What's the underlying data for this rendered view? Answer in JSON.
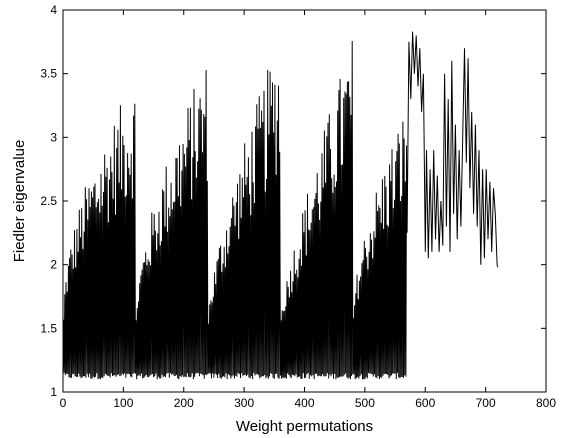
{
  "chart_data": {
    "type": "line",
    "title": "",
    "xlabel": "Weight permutations",
    "ylabel": "Fiedler eigenvalue",
    "xlim": [
      0,
      800
    ],
    "ylim": [
      1,
      4
    ],
    "xticks": [
      0,
      100,
      200,
      300,
      400,
      500,
      600,
      700,
      800
    ],
    "yticks": [
      1,
      1.5,
      2,
      2.5,
      3,
      3.5,
      4
    ],
    "xtick_labels": [
      "0",
      "100",
      "200",
      "300",
      "400",
      "500",
      "600",
      "700",
      "800"
    ],
    "ytick_labels": [
      "1",
      "1.5",
      "2",
      "2.5",
      "3",
      "3.5",
      "4"
    ],
    "grid": false,
    "line_color": "#000000",
    "series": [
      {
        "segments": [
          {
            "x0": 0,
            "x1": 120,
            "base": 1.1,
            "peak": 3.47,
            "ramp": 0.5
          },
          {
            "x0": 120,
            "x1": 240,
            "base": 1.1,
            "peak": 3.66,
            "ramp": 0.6
          },
          {
            "x0": 240,
            "x1": 360,
            "base": 1.1,
            "peak": 3.83,
            "ramp": 0.7
          },
          {
            "x0": 360,
            "x1": 480,
            "base": 1.1,
            "peak": 3.83,
            "ramp": 0.8
          },
          {
            "x0": 480,
            "x1": 570,
            "base": 1.1,
            "peak": 3.3,
            "ramp": 0.6
          }
        ],
        "tail": [
          [
            570,
            2.25
          ],
          [
            573,
            3.75
          ],
          [
            576,
            3.3
          ],
          [
            579,
            3.83
          ],
          [
            582,
            3.5
          ],
          [
            585,
            3.8
          ],
          [
            588,
            3.4
          ],
          [
            591,
            3.7
          ],
          [
            594,
            3.2
          ],
          [
            597,
            3.5
          ],
          [
            600,
            2.1
          ],
          [
            602,
            2.9
          ],
          [
            605,
            2.05
          ],
          [
            608,
            2.75
          ],
          [
            611,
            2.1
          ],
          [
            614,
            2.9
          ],
          [
            617,
            2.2
          ],
          [
            620,
            2.7
          ],
          [
            623,
            2.1
          ],
          [
            626,
            2.5
          ],
          [
            629,
            2.15
          ],
          [
            632,
            3.5
          ],
          [
            635,
            2.3
          ],
          [
            638,
            3.3
          ],
          [
            641,
            2.1
          ],
          [
            644,
            3.6
          ],
          [
            647,
            2.4
          ],
          [
            650,
            3.1
          ],
          [
            653,
            2.2
          ],
          [
            656,
            2.9
          ],
          [
            659,
            2.3
          ],
          [
            662,
            3.0
          ],
          [
            665,
            3.7
          ],
          [
            668,
            2.8
          ],
          [
            671,
            3.62
          ],
          [
            674,
            2.6
          ],
          [
            677,
            3.2
          ],
          [
            680,
            2.4
          ],
          [
            683,
            3.1
          ],
          [
            686,
            2.3
          ],
          [
            689,
            2.9
          ],
          [
            692,
            2.0
          ],
          [
            695,
            2.75
          ],
          [
            698,
            2.05
          ],
          [
            701,
            2.75
          ],
          [
            704,
            2.2
          ],
          [
            707,
            2.65
          ],
          [
            710,
            2.1
          ],
          [
            713,
            2.6
          ],
          [
            716,
            2.4
          ],
          [
            719,
            2.0
          ],
          [
            720,
            1.98
          ]
        ]
      }
    ]
  }
}
